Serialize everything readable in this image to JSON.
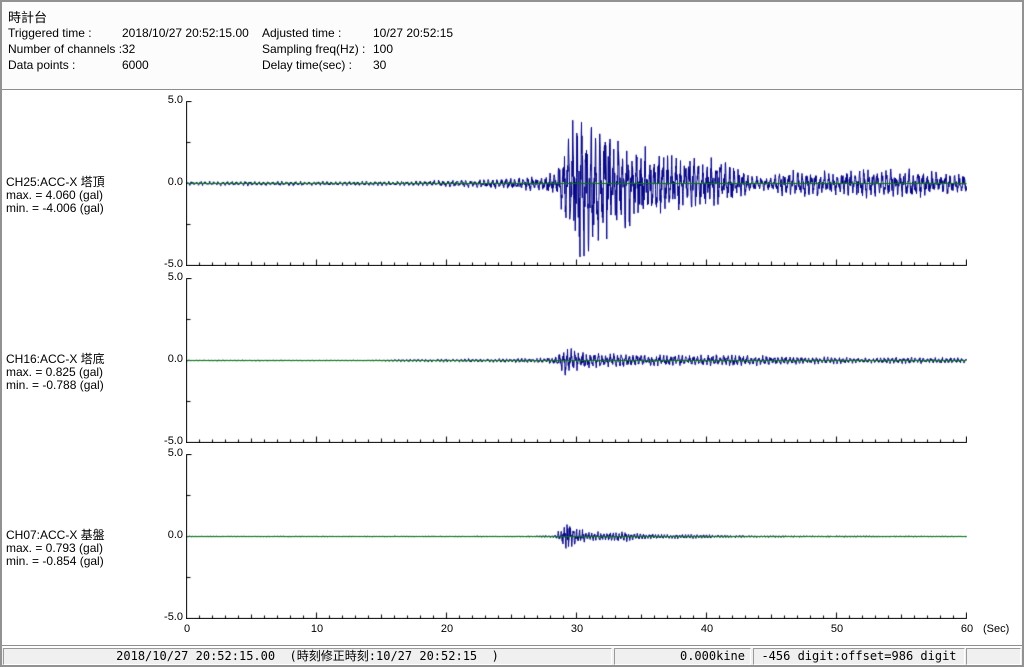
{
  "header": {
    "title": "時計台",
    "fields_left": [
      {
        "label": "Triggered time :",
        "value": "2018/10/27 20:52:15.00"
      },
      {
        "label": "Number of channels :",
        "value": "32"
      },
      {
        "label": "Data points :",
        "value": "6000"
      }
    ],
    "fields_right": [
      {
        "label": "Adjusted time :",
        "value": "10/27 20:52:15"
      },
      {
        "label": "Sampling freq(Hz) :",
        "value": "100"
      },
      {
        "label": "Delay time(sec) :",
        "value": "30"
      }
    ]
  },
  "status_bar": {
    "time_text": "2018/10/27 20:52:15.00  (時刻修正時刻:10/27 20:52:15  )",
    "kine_text": "0.000kine",
    "digit_text": "-456 digit:offset=986 digit"
  },
  "chart_data": {
    "type": "line",
    "title": "",
    "x": {
      "label": "(Sec)",
      "min": 0,
      "max": 60,
      "major_ticks": [
        0,
        10,
        20,
        30,
        40,
        50,
        60
      ],
      "minor_tick_sec": 1
    },
    "y": {
      "min": -5.0,
      "max": 5.0,
      "tick_labels": [
        "5.0",
        "0.0",
        "-5.0"
      ],
      "minor_ticks": [
        2.5,
        -2.5
      ],
      "unit": "gal"
    },
    "grid": false,
    "trace_color": "#000085",
    "zero_line_color": "#007a00",
    "panels": [
      {
        "channel": "CH25:ACC-X 塔頂",
        "max_text": "max. = 4.060 (gal)",
        "min_text": "min. = -4.006 (gal)",
        "max_gal": 4.06,
        "min_gal": -4.006,
        "freq_hz": [
          2.9,
          6.3
        ],
        "seed": 7,
        "envelope": [
          [
            0,
            0.12
          ],
          [
            16,
            0.12
          ],
          [
            20,
            0.18
          ],
          [
            24,
            0.28
          ],
          [
            27,
            0.42
          ],
          [
            28.5,
            0.75
          ],
          [
            29.3,
            2.3
          ],
          [
            30.2,
            4.0
          ],
          [
            31.2,
            3.4
          ],
          [
            32.5,
            2.8
          ],
          [
            34,
            2.2
          ],
          [
            36,
            1.7
          ],
          [
            38,
            1.5
          ],
          [
            40,
            1.45
          ],
          [
            42,
            1.0
          ],
          [
            43.5,
            0.42
          ],
          [
            45,
            0.38
          ],
          [
            46,
            0.68
          ],
          [
            48,
            0.72
          ],
          [
            50,
            0.6
          ],
          [
            52,
            0.78
          ],
          [
            54,
            0.8
          ],
          [
            56,
            0.75
          ],
          [
            58,
            0.6
          ],
          [
            60,
            0.5
          ]
        ]
      },
      {
        "channel": "CH16:ACC-X 塔底",
        "max_text": "max. = 0.825 (gal)",
        "min_text": "min. = -0.788 (gal)",
        "max_gal": 0.825,
        "min_gal": -0.788,
        "freq_hz": [
          3.4,
          7.6
        ],
        "seed": 13,
        "envelope": [
          [
            0,
            0.025
          ],
          [
            14,
            0.03
          ],
          [
            17,
            0.07
          ],
          [
            20,
            0.09
          ],
          [
            24,
            0.1
          ],
          [
            27,
            0.12
          ],
          [
            28.5,
            0.22
          ],
          [
            29.2,
            0.8
          ],
          [
            29.8,
            0.52
          ],
          [
            31,
            0.42
          ],
          [
            33,
            0.36
          ],
          [
            36,
            0.3
          ],
          [
            39,
            0.28
          ],
          [
            41,
            0.33
          ],
          [
            44,
            0.26
          ],
          [
            47,
            0.2
          ],
          [
            50,
            0.18
          ],
          [
            52,
            0.13
          ],
          [
            54,
            0.17
          ],
          [
            57,
            0.17
          ],
          [
            60,
            0.15
          ]
        ]
      },
      {
        "channel": "CH07:ACC-X 基盤",
        "max_text": "max. = 0.793 (gal)",
        "min_text": "min. = -0.854 (gal)",
        "max_gal": 0.793,
        "min_gal": -0.854,
        "freq_hz": [
          4.3,
          9.2
        ],
        "seed": 29,
        "envelope": [
          [
            0,
            0.02
          ],
          [
            20,
            0.025
          ],
          [
            26,
            0.03
          ],
          [
            28.3,
            0.07
          ],
          [
            28.9,
            0.45
          ],
          [
            29.3,
            0.78
          ],
          [
            29.9,
            0.48
          ],
          [
            30.8,
            0.32
          ],
          [
            32,
            0.24
          ],
          [
            33.5,
            0.28
          ],
          [
            35,
            0.16
          ],
          [
            37,
            0.11
          ],
          [
            39,
            0.12
          ],
          [
            41,
            0.08
          ],
          [
            44,
            0.055
          ],
          [
            48,
            0.045
          ],
          [
            54,
            0.04
          ],
          [
            60,
            0.03
          ]
        ]
      }
    ]
  }
}
